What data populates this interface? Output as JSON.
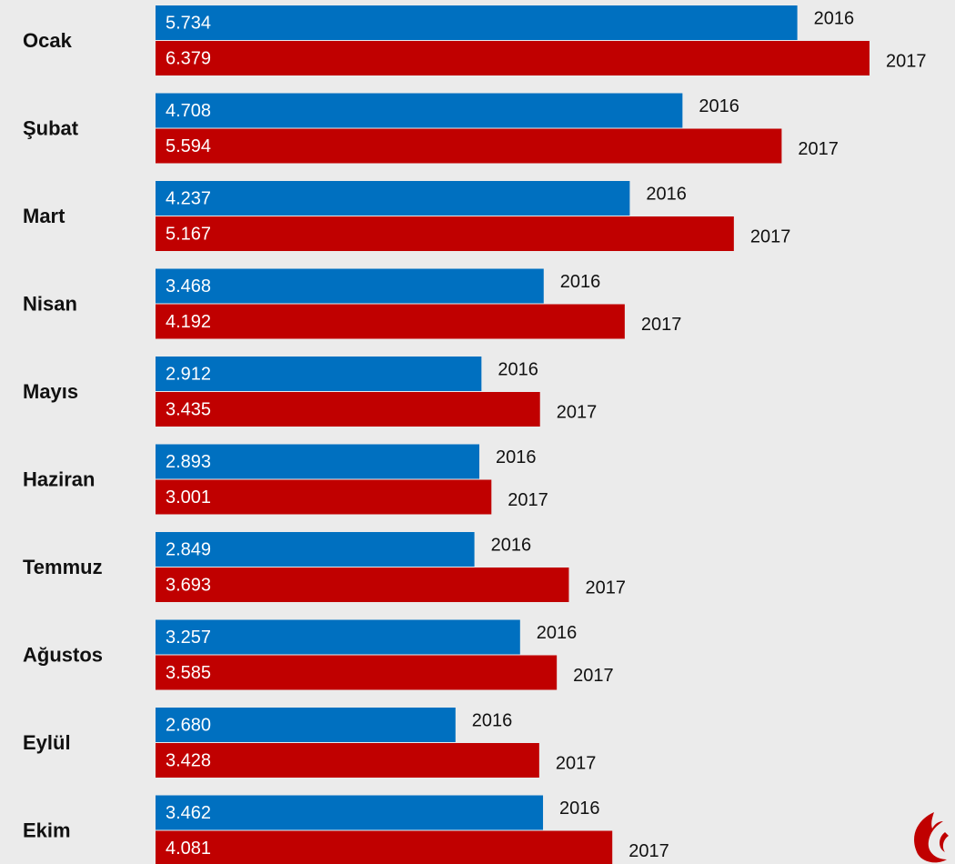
{
  "chart_data": {
    "type": "bar",
    "orientation": "horizontal",
    "categories": [
      "Ocak",
      "Şubat",
      "Mart",
      "Nisan",
      "Mayıs",
      "Haziran",
      "Temmuz",
      "Ağustos",
      "Eylül",
      "Ekim"
    ],
    "series": [
      {
        "name": "2016",
        "color": "#0070c0",
        "values": [
          5734,
          4708,
          4237,
          3468,
          2912,
          2893,
          2849,
          3257,
          2680,
          3462
        ],
        "value_labels": [
          "5.734",
          "4.708",
          "4.237",
          "3.468",
          "2.912",
          "2.893",
          "2.849",
          "3.257",
          "2.680",
          "3.462"
        ]
      },
      {
        "name": "2017",
        "color": "#c00000",
        "values": [
          6379,
          5594,
          5167,
          4192,
          3435,
          3001,
          3693,
          3585,
          3428,
          4081
        ],
        "value_labels": [
          "6.379",
          "5.594",
          "5.167",
          "4.192",
          "3.435",
          "3.001",
          "3.693",
          "3.585",
          "3.428",
          "4.081"
        ]
      }
    ]
  }
}
